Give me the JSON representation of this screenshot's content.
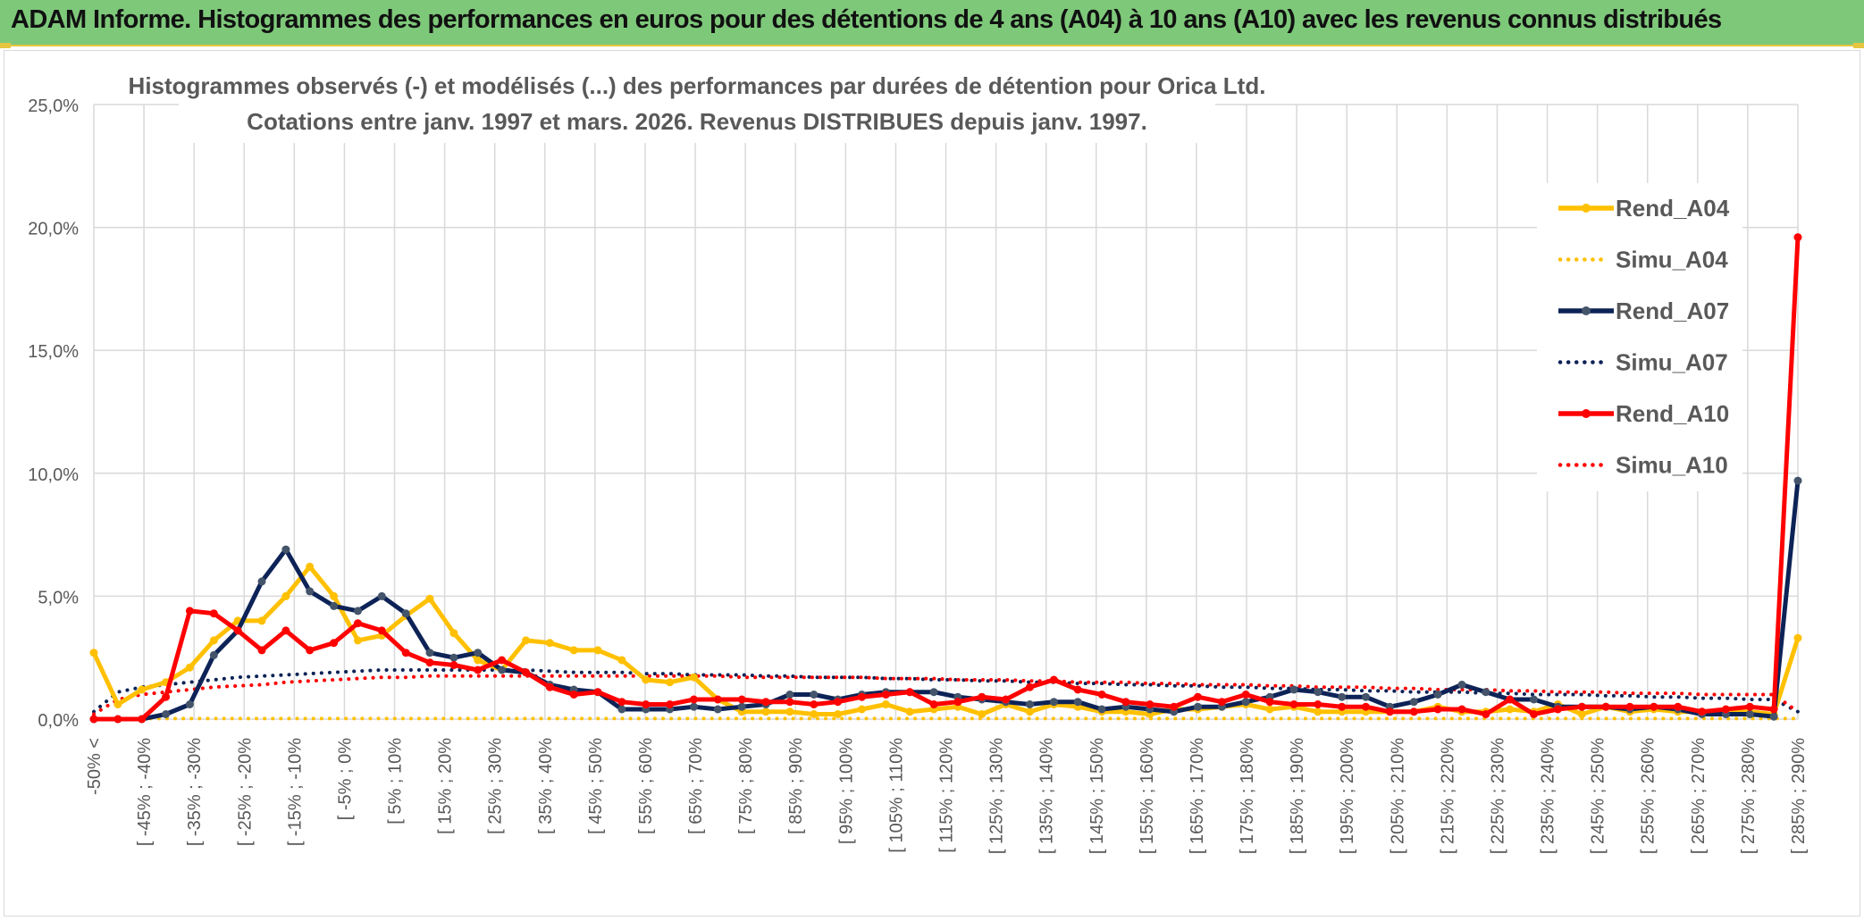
{
  "banner": {
    "title": "ADAM Informe. Histogrammes des performances en euros pour des détentions de 4 ans (A04) à 10 ans (A10) avec les revenus connus distribués"
  },
  "chart_data": {
    "type": "line",
    "title": "Histogrammes observés (-) et modélisés (...) des performances par durées de détention pour Orica Ltd.",
    "subtitle": "Cotations entre janv. 1997 et mars. 2026. Revenus DISTRIBUES depuis janv. 1997.",
    "xlabel": "",
    "ylabel": "",
    "ylim": [
      0,
      25
    ],
    "yticks": [
      "0,0%",
      "5,0%",
      "10,0%",
      "15,0%",
      "20,0%",
      "25,0%"
    ],
    "grid": true,
    "legend_position": "right",
    "x_tick_labels": [
      "-50% <",
      "[ -45% ; -40%",
      "[ -35% ; -30%",
      "[ -25% ; -20%",
      "[ -15% ; -10%",
      "[ -5% ; 0%",
      "[ 5% ; 10%",
      "[ 15% ; 20%",
      "[ 25% ; 30%",
      "[ 35% ; 40%",
      "[ 45% ; 50%",
      "[ 55% ; 60%",
      "[ 65% ; 70%",
      "[ 75% ; 80%",
      "[ 85% ; 90%",
      "[ 95% ; 100%",
      "[ 105% ; 110%",
      "[ 115% ; 120%",
      "[ 125% ; 130%",
      "[ 135% ; 140%",
      "[ 145% ; 150%",
      "[ 155% ; 160%",
      "[ 165% ; 170%",
      "[ 175% ; 180%",
      "[ 185% ; 190%",
      "[ 195% ; 200%",
      "[ 205% ; 210%",
      "[ 215% ; 220%",
      "[ 225% ; 230%",
      "[ 235% ; 240%",
      "[ 245% ; 250%",
      "[ 255% ; 260%",
      "[ 265% ; 270%",
      "[ 275% ; 280%",
      "[ 285% ; 290%"
    ],
    "series": [
      {
        "name": "Rend_A04",
        "style": "solid",
        "color": "#ffc000",
        "values": [
          2.7,
          0.6,
          1.2,
          1.5,
          2.1,
          3.2,
          4.0,
          4.0,
          5.0,
          6.2,
          5.0,
          3.2,
          3.4,
          4.2,
          4.9,
          3.5,
          2.4,
          2.0,
          3.2,
          3.1,
          2.8,
          2.8,
          2.4,
          1.6,
          1.5,
          1.7,
          0.8,
          0.3,
          0.3,
          0.3,
          0.2,
          0.2,
          0.4,
          0.6,
          0.3,
          0.4,
          0.5,
          0.2,
          0.6,
          0.3,
          0.6,
          0.5,
          0.3,
          0.3,
          0.2,
          0.4,
          0.4,
          0.5,
          0.6,
          0.4,
          0.5,
          0.3,
          0.3,
          0.3,
          0.3,
          0.3,
          0.5,
          0.3,
          0.3,
          0.4,
          0.3,
          0.6,
          0.2,
          0.5,
          0.3,
          0.4,
          0.3,
          0.3,
          0.3,
          0.3,
          0.2,
          3.3
        ]
      },
      {
        "name": "Simu_A04",
        "style": "dotted",
        "color": "#ffc000",
        "values": [
          0.02,
          0.02,
          0.02,
          0.02,
          0.02,
          0.02,
          0.02,
          0.02,
          0.02,
          0.02,
          0.02,
          0.02,
          0.02,
          0.02,
          0.02,
          0.02,
          0.02,
          0.02,
          0.02,
          0.02,
          0.02,
          0.02,
          0.02,
          0.02,
          0.02,
          0.02,
          0.02,
          0.02,
          0.02,
          0.02,
          0.02,
          0.02,
          0.02,
          0.02,
          0.02,
          0.02,
          0.02,
          0.02,
          0.02,
          0.02,
          0.02,
          0.02,
          0.02,
          0.02,
          0.02,
          0.02,
          0.02,
          0.02,
          0.02,
          0.02,
          0.02,
          0.02,
          0.02,
          0.02,
          0.02,
          0.02,
          0.02,
          0.02,
          0.02,
          0.02,
          0.02,
          0.02,
          0.02,
          0.02,
          0.02,
          0.02,
          0.02,
          0.02,
          0.02,
          0.02,
          0.02,
          0.02
        ]
      },
      {
        "name": "Rend_A07",
        "style": "solid",
        "color": "#0d2357",
        "values": [
          0.0,
          0.0,
          0.0,
          0.2,
          0.6,
          2.6,
          3.6,
          5.6,
          6.9,
          5.2,
          4.6,
          4.4,
          5.0,
          4.3,
          2.7,
          2.5,
          2.7,
          2.0,
          1.9,
          1.4,
          1.2,
          1.1,
          0.4,
          0.4,
          0.4,
          0.5,
          0.4,
          0.5,
          0.6,
          1.0,
          1.0,
          0.8,
          1.0,
          1.1,
          1.1,
          1.1,
          0.9,
          0.8,
          0.7,
          0.6,
          0.7,
          0.7,
          0.4,
          0.5,
          0.4,
          0.3,
          0.5,
          0.5,
          0.7,
          0.9,
          1.2,
          1.1,
          0.9,
          0.9,
          0.5,
          0.7,
          1.0,
          1.4,
          1.1,
          0.8,
          0.8,
          0.5,
          0.5,
          0.5,
          0.4,
          0.5,
          0.4,
          0.2,
          0.2,
          0.2,
          0.1,
          9.7
        ]
      },
      {
        "name": "Simu_A07",
        "style": "dotted",
        "color": "#0d2357",
        "values": [
          0.3,
          1.1,
          1.3,
          1.4,
          1.5,
          1.6,
          1.7,
          1.75,
          1.8,
          1.85,
          1.9,
          1.95,
          2.0,
          2.0,
          2.0,
          2.0,
          2.0,
          2.0,
          2.0,
          1.95,
          1.9,
          1.9,
          1.9,
          1.85,
          1.85,
          1.8,
          1.8,
          1.8,
          1.75,
          1.75,
          1.7,
          1.7,
          1.7,
          1.65,
          1.65,
          1.6,
          1.6,
          1.55,
          1.55,
          1.5,
          1.5,
          1.45,
          1.45,
          1.4,
          1.4,
          1.35,
          1.35,
          1.3,
          1.3,
          1.25,
          1.25,
          1.2,
          1.2,
          1.15,
          1.15,
          1.1,
          1.1,
          1.1,
          1.05,
          1.05,
          1.0,
          1.0,
          1.0,
          0.95,
          0.95,
          0.9,
          0.9,
          0.85,
          0.85,
          0.8,
          0.8,
          0.3
        ]
      },
      {
        "name": "Rend_A10",
        "style": "solid",
        "color": "#ff0000",
        "values": [
          0.0,
          0.0,
          0.0,
          0.9,
          4.4,
          4.3,
          3.6,
          2.8,
          3.6,
          2.8,
          3.1,
          3.9,
          3.6,
          2.7,
          2.3,
          2.2,
          2.0,
          2.4,
          1.9,
          1.3,
          1.0,
          1.1,
          0.7,
          0.6,
          0.6,
          0.8,
          0.8,
          0.8,
          0.7,
          0.7,
          0.6,
          0.7,
          0.9,
          1.0,
          1.1,
          0.6,
          0.7,
          0.9,
          0.8,
          1.3,
          1.6,
          1.2,
          1.0,
          0.7,
          0.6,
          0.5,
          0.9,
          0.7,
          1.0,
          0.7,
          0.6,
          0.6,
          0.5,
          0.5,
          0.3,
          0.3,
          0.4,
          0.4,
          0.2,
          0.8,
          0.2,
          0.4,
          0.5,
          0.5,
          0.5,
          0.5,
          0.5,
          0.3,
          0.4,
          0.5,
          0.4,
          19.6
        ]
      },
      {
        "name": "Simu_A10",
        "style": "dotted",
        "color": "#ff0000",
        "values": [
          0.2,
          0.8,
          1.0,
          1.1,
          1.2,
          1.3,
          1.35,
          1.4,
          1.5,
          1.55,
          1.6,
          1.65,
          1.7,
          1.7,
          1.75,
          1.75,
          1.75,
          1.75,
          1.75,
          1.75,
          1.75,
          1.75,
          1.75,
          1.75,
          1.75,
          1.75,
          1.75,
          1.7,
          1.7,
          1.7,
          1.7,
          1.7,
          1.7,
          1.65,
          1.65,
          1.65,
          1.6,
          1.6,
          1.6,
          1.55,
          1.55,
          1.5,
          1.5,
          1.5,
          1.45,
          1.45,
          1.4,
          1.4,
          1.4,
          1.35,
          1.35,
          1.3,
          1.3,
          1.3,
          1.25,
          1.25,
          1.2,
          1.2,
          1.2,
          1.15,
          1.15,
          1.1,
          1.1,
          1.1,
          1.05,
          1.05,
          1.05,
          1.0,
          1.0,
          1.0,
          1.0,
          0.3
        ]
      }
    ]
  }
}
